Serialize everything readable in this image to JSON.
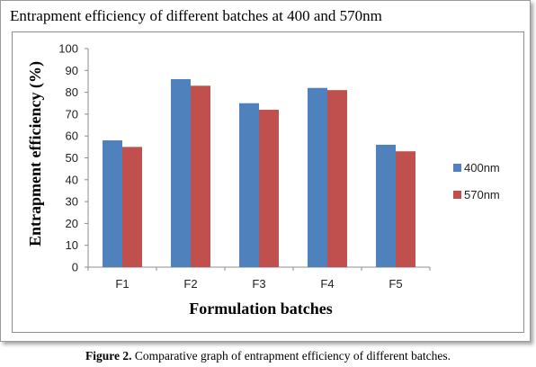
{
  "caption": {
    "label": "Figure 2.",
    "text": " Comparative graph of entrapment efficiency of different batches."
  },
  "chart_data": {
    "type": "bar",
    "title": "Entrapment efficiency of different batches at 400 and 570nm",
    "xlabel": "Formulation batches",
    "ylabel": "Entrapment efficiency (%)",
    "categories": [
      "F1",
      "F2",
      "F3",
      "F4",
      "F5"
    ],
    "series": [
      {
        "name": "400nm",
        "color": "#4f81bd",
        "values": [
          58,
          86,
          75,
          82,
          56
        ]
      },
      {
        "name": "570nm",
        "color": "#c0504d",
        "values": [
          55,
          83,
          72,
          81,
          53
        ]
      }
    ],
    "ylim": [
      0,
      100
    ],
    "yticks": [
      0,
      10,
      20,
      30,
      40,
      50,
      60,
      70,
      80,
      90,
      100
    ],
    "grid": false,
    "legend": "right"
  }
}
